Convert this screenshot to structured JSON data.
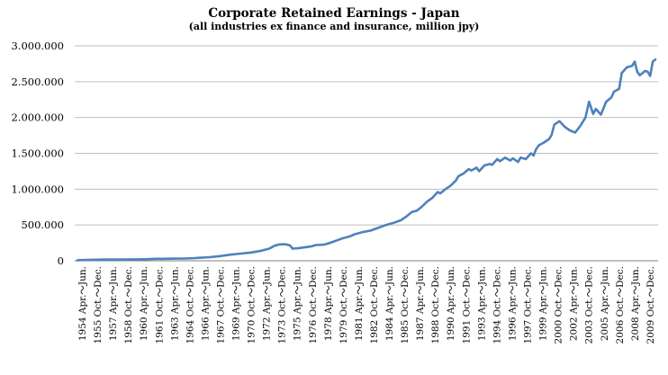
{
  "chart_data": {
    "type": "line",
    "title": "Corporate Retained  Earnings - Japan",
    "subtitle": "(all industries ex finance and insurance, million jpy)",
    "xlabel": "",
    "ylabel": "",
    "ylim": [
      0,
      3000000
    ],
    "yticks": [
      0,
      500000,
      1000000,
      1500000,
      2000000,
      2500000,
      3000000
    ],
    "ytick_labels": [
      "0",
      "500.000",
      "1.000.000",
      "1.500.000",
      "2.000.000",
      "2.500.000",
      "3.000.000"
    ],
    "grid": true,
    "legend": "none",
    "color": "#4f81bd",
    "x_tick_labels": [
      "1954 Apr.～Jun.",
      "1955 Oct.～Dec.",
      "1957 Apr.～Jun.",
      "1958 Oct.～Dec.",
      "1960 Apr.～Jun.",
      "1961 Oct.～Dec.",
      "1963 Apr.～Jun.",
      "1964 Oct.～Dec.",
      "1966 Apr.～Jun.",
      "1967 Oct.～Dec.",
      "1969 Apr.～Jun.",
      "1970 Oct.～Dec.",
      "1972 Apr.～Jun.",
      "1973 Oct.～Dec.",
      "1975 Apr.～Jun.",
      "1976 Oct.～Dec.",
      "1978 Apr.～Jun.",
      "1979 Oct.～Dec.",
      "1981 Apr.～Jun.",
      "1982 Oct.～Dec.",
      "1984 Apr.～Jun.",
      "1985 Oct.～Dec.",
      "1987 Apr.～Jun.",
      "1988 Oct.～Dec.",
      "1990 Apr.～Jun.",
      "1991 Oct.～Dec.",
      "1993 Apr.～Jun.",
      "1994 Oct.～Dec.",
      "1996 Apr.～Jun.",
      "1997 Oct.～Dec.",
      "1999 Apr.～Jun.",
      "2000 Oct.～Dec.",
      "2002 Apr.～Jun.",
      "2003 Oct.～Dec.",
      "2005 Apr.～Jun.",
      "2006 Oct.～Dec.",
      "2008 Apr.～Jun.",
      "2009 Oct.～Dec."
    ],
    "series": [
      {
        "values": [
          [
            1954.25,
            8000
          ],
          [
            1955.0,
            12000
          ],
          [
            1956.0,
            15000
          ],
          [
            1957.0,
            17000
          ],
          [
            1958.0,
            18000
          ],
          [
            1959.0,
            19000
          ],
          [
            1960.0,
            20000
          ],
          [
            1961.0,
            22000
          ],
          [
            1961.75,
            28000
          ],
          [
            1962.5,
            28000
          ],
          [
            1963.5,
            30000
          ],
          [
            1964.5,
            32000
          ],
          [
            1965.5,
            36000
          ],
          [
            1966.0,
            42000
          ],
          [
            1967.0,
            50000
          ],
          [
            1968.0,
            65000
          ],
          [
            1969.0,
            85000
          ],
          [
            1970.0,
            100000
          ],
          [
            1971.0,
            115000
          ],
          [
            1972.0,
            140000
          ],
          [
            1972.75,
            170000
          ],
          [
            1973.25,
            210000
          ],
          [
            1973.75,
            228000
          ],
          [
            1974.25,
            232000
          ],
          [
            1974.75,
            215000
          ],
          [
            1975.0,
            170000
          ],
          [
            1975.5,
            175000
          ],
          [
            1976.0,
            185000
          ],
          [
            1976.75,
            200000
          ],
          [
            1977.25,
            220000
          ],
          [
            1978.0,
            225000
          ],
          [
            1978.5,
            245000
          ],
          [
            1979.0,
            270000
          ],
          [
            1979.75,
            310000
          ],
          [
            1980.5,
            340000
          ],
          [
            1981.0,
            370000
          ],
          [
            1981.75,
            400000
          ],
          [
            1982.5,
            420000
          ],
          [
            1983.25,
            460000
          ],
          [
            1984.0,
            500000
          ],
          [
            1984.75,
            530000
          ],
          [
            1985.5,
            570000
          ],
          [
            1986.0,
            620000
          ],
          [
            1986.5,
            680000
          ],
          [
            1987.0,
            700000
          ],
          [
            1987.5,
            760000
          ],
          [
            1988.0,
            830000
          ],
          [
            1988.5,
            880000
          ],
          [
            1989.0,
            960000
          ],
          [
            1989.25,
            940000
          ],
          [
            1989.75,
            1000000
          ],
          [
            1990.25,
            1050000
          ],
          [
            1990.75,
            1120000
          ],
          [
            1991.0,
            1180000
          ],
          [
            1991.5,
            1220000
          ],
          [
            1992.0,
            1280000
          ],
          [
            1992.25,
            1260000
          ],
          [
            1992.75,
            1300000
          ],
          [
            1993.0,
            1250000
          ],
          [
            1993.5,
            1330000
          ],
          [
            1994.0,
            1350000
          ],
          [
            1994.25,
            1340000
          ],
          [
            1994.75,
            1420000
          ],
          [
            1995.0,
            1390000
          ],
          [
            1995.5,
            1440000
          ],
          [
            1996.0,
            1400000
          ],
          [
            1996.25,
            1430000
          ],
          [
            1996.75,
            1380000
          ],
          [
            1997.0,
            1440000
          ],
          [
            1997.5,
            1420000
          ],
          [
            1998.0,
            1500000
          ],
          [
            1998.25,
            1470000
          ],
          [
            1998.5,
            1560000
          ],
          [
            1998.75,
            1610000
          ],
          [
            1999.25,
            1650000
          ],
          [
            1999.75,
            1700000
          ],
          [
            2000.0,
            1760000
          ],
          [
            2000.25,
            1900000
          ],
          [
            2000.75,
            1950000
          ],
          [
            2001.25,
            1870000
          ],
          [
            2001.75,
            1820000
          ],
          [
            2002.25,
            1790000
          ],
          [
            2002.75,
            1880000
          ],
          [
            2003.25,
            2000000
          ],
          [
            2003.6,
            2220000
          ],
          [
            2004.0,
            2050000
          ],
          [
            2004.25,
            2120000
          ],
          [
            2004.75,
            2040000
          ],
          [
            2005.25,
            2220000
          ],
          [
            2005.75,
            2280000
          ],
          [
            2006.0,
            2360000
          ],
          [
            2006.5,
            2400000
          ],
          [
            2006.75,
            2620000
          ],
          [
            2007.25,
            2700000
          ],
          [
            2007.75,
            2720000
          ],
          [
            2008.0,
            2780000
          ],
          [
            2008.25,
            2640000
          ],
          [
            2008.5,
            2590000
          ],
          [
            2009.0,
            2650000
          ],
          [
            2009.25,
            2640000
          ],
          [
            2009.5,
            2580000
          ],
          [
            2009.75,
            2780000
          ],
          [
            2010.0,
            2810000
          ]
        ]
      }
    ]
  }
}
